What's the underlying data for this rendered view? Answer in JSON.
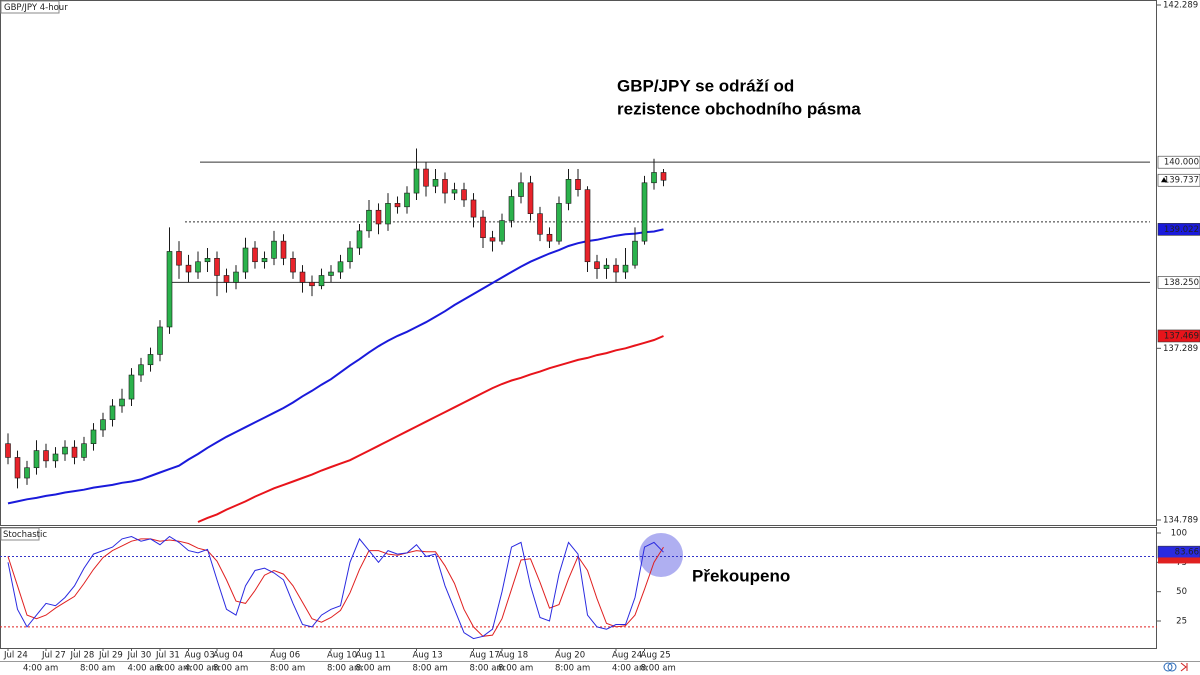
{
  "chart_data": [
    {
      "type": "candlestick",
      "title": "GBP/JPY 4-hour",
      "annotation": [
        "GBP/JPY se odráží od",
        "rezistence obchodního pásma"
      ],
      "up_color": "#2bb24c",
      "down_color": "#e8232b",
      "ylim": [
        134.716,
        142.362
      ],
      "yticks": [
        142.289,
        137.289,
        134.789
      ],
      "levels": [
        {
          "value": 140,
          "label": "140.000",
          "style": "solid"
        },
        {
          "value": 139.13,
          "style": "dotted"
        },
        {
          "value": 138.25,
          "label": "138.250",
          "style": "solid"
        }
      ],
      "ohlc": [
        [
          135.9,
          136.05,
          135.6,
          135.7
        ],
        [
          135.7,
          135.8,
          135.25,
          135.4
        ],
        [
          135.4,
          135.65,
          135.3,
          135.55
        ],
        [
          135.55,
          135.95,
          135.45,
          135.8
        ],
        [
          135.8,
          135.9,
          135.55,
          135.65
        ],
        [
          135.65,
          135.85,
          135.55,
          135.75
        ],
        [
          135.75,
          135.95,
          135.65,
          135.85
        ],
        [
          135.85,
          135.95,
          135.6,
          135.7
        ],
        [
          135.7,
          136.0,
          135.65,
          135.9
        ],
        [
          135.9,
          136.2,
          135.8,
          136.1
        ],
        [
          136.1,
          136.35,
          136.0,
          136.25
        ],
        [
          136.25,
          136.55,
          136.15,
          136.45
        ],
        [
          136.45,
          136.7,
          136.35,
          136.55
        ],
        [
          136.55,
          137.0,
          136.45,
          136.9
        ],
        [
          136.9,
          137.15,
          136.8,
          137.05
        ],
        [
          137.05,
          137.3,
          136.95,
          137.2
        ],
        [
          137.2,
          137.7,
          137.1,
          137.6
        ],
        [
          137.6,
          139.05,
          137.5,
          138.7
        ],
        [
          138.7,
          138.85,
          138.3,
          138.5
        ],
        [
          138.5,
          138.65,
          138.25,
          138.4
        ],
        [
          138.4,
          138.7,
          138.3,
          138.55
        ],
        [
          138.55,
          138.75,
          138.4,
          138.6
        ],
        [
          138.6,
          138.7,
          138.05,
          138.35
        ],
        [
          138.35,
          138.45,
          138.1,
          138.25
        ],
        [
          138.25,
          138.5,
          138.15,
          138.4
        ],
        [
          138.4,
          138.9,
          138.3,
          138.75
        ],
        [
          138.75,
          138.85,
          138.45,
          138.55
        ],
        [
          138.55,
          138.7,
          138.45,
          138.6
        ],
        [
          138.6,
          139.0,
          138.5,
          138.85
        ],
        [
          138.85,
          138.95,
          138.5,
          138.6
        ],
        [
          138.6,
          138.7,
          138.3,
          138.4
        ],
        [
          138.4,
          138.5,
          138.1,
          138.25
        ],
        [
          138.25,
          138.35,
          138.05,
          138.2
        ],
        [
          138.2,
          138.45,
          138.15,
          138.35
        ],
        [
          138.35,
          138.5,
          138.25,
          138.4
        ],
        [
          138.4,
          138.65,
          138.3,
          138.55
        ],
        [
          138.55,
          138.85,
          138.45,
          138.75
        ],
        [
          138.75,
          139.1,
          138.65,
          139.0
        ],
        [
          139.0,
          139.45,
          138.9,
          139.3
        ],
        [
          139.3,
          139.4,
          138.95,
          139.1
        ],
        [
          139.1,
          139.55,
          139.0,
          139.4
        ],
        [
          139.4,
          139.5,
          139.25,
          139.35
        ],
        [
          139.35,
          139.65,
          139.25,
          139.55
        ],
        [
          139.55,
          140.2,
          139.45,
          139.9
        ],
        [
          139.9,
          140.0,
          139.5,
          139.65
        ],
        [
          139.65,
          139.9,
          139.55,
          139.75
        ],
        [
          139.75,
          139.85,
          139.4,
          139.55
        ],
        [
          139.55,
          139.7,
          139.45,
          139.6
        ],
        [
          139.6,
          139.7,
          139.35,
          139.45
        ],
        [
          139.45,
          139.55,
          139.05,
          139.2
        ],
        [
          139.2,
          139.3,
          138.75,
          138.9
        ],
        [
          138.9,
          139.0,
          138.7,
          138.85
        ],
        [
          138.85,
          139.25,
          138.8,
          139.15
        ],
        [
          139.15,
          139.6,
          139.05,
          139.5
        ],
        [
          139.5,
          139.85,
          139.4,
          139.7
        ],
        [
          139.7,
          139.8,
          139.15,
          139.25
        ],
        [
          139.25,
          139.35,
          138.85,
          138.95
        ],
        [
          138.95,
          139.05,
          138.75,
          138.85
        ],
        [
          138.85,
          139.5,
          138.8,
          139.4
        ],
        [
          139.4,
          139.9,
          139.3,
          139.75
        ],
        [
          139.75,
          139.9,
          139.5,
          139.6
        ],
        [
          139.6,
          139.65,
          138.4,
          138.55
        ],
        [
          138.55,
          138.65,
          138.3,
          138.45
        ],
        [
          138.45,
          138.6,
          138.3,
          138.5
        ],
        [
          138.5,
          138.6,
          138.25,
          138.4
        ],
        [
          138.4,
          138.75,
          138.3,
          138.5
        ],
        [
          138.5,
          139.05,
          138.45,
          138.85
        ],
        [
          138.85,
          139.8,
          138.8,
          139.7
        ],
        [
          139.7,
          140.05,
          139.6,
          139.85
        ],
        [
          139.85,
          139.9,
          139.65,
          139.737
        ]
      ],
      "series": [
        {
          "color": "#1a1adb",
          "values": [
            135.03,
            135.06,
            135.09,
            135.11,
            135.14,
            135.16,
            135.19,
            135.21,
            135.23,
            135.26,
            135.28,
            135.3,
            135.33,
            135.35,
            135.38,
            135.43,
            135.48,
            135.53,
            135.58,
            135.67,
            135.75,
            135.84,
            135.92,
            136.0,
            136.07,
            136.14,
            136.21,
            136.28,
            136.35,
            136.42,
            136.5,
            136.59,
            136.67,
            136.76,
            136.84,
            136.94,
            137.04,
            137.13,
            137.23,
            137.32,
            137.4,
            137.47,
            137.53,
            137.6,
            137.67,
            137.75,
            137.83,
            137.92,
            138.0,
            138.08,
            138.16,
            138.24,
            138.32,
            138.4,
            138.48,
            138.55,
            138.61,
            138.67,
            138.72,
            138.78,
            138.82,
            138.85,
            138.87,
            138.9,
            138.93,
            138.95,
            138.96,
            138.98,
            138.99,
            139.022
          ]
        },
        {
          "color": "#e8141b",
          "values": [
            null,
            null,
            null,
            null,
            null,
            null,
            null,
            null,
            null,
            null,
            null,
            null,
            null,
            null,
            null,
            null,
            null,
            null,
            null,
            null,
            134.76,
            134.82,
            134.87,
            134.94,
            135.0,
            135.06,
            135.13,
            135.19,
            135.25,
            135.3,
            135.35,
            135.4,
            135.45,
            135.51,
            135.56,
            135.61,
            135.66,
            135.73,
            135.8,
            135.87,
            135.94,
            136.01,
            136.08,
            136.15,
            136.22,
            136.29,
            136.36,
            136.43,
            136.5,
            136.57,
            136.64,
            136.71,
            136.77,
            136.82,
            136.86,
            136.91,
            136.95,
            137.0,
            137.04,
            137.08,
            137.12,
            137.15,
            137.19,
            137.22,
            137.26,
            137.29,
            137.33,
            137.37,
            137.41,
            137.469
          ]
        }
      ]
    },
    {
      "type": "line",
      "title": "Stochastic",
      "annotation": "Překoupeno",
      "ylim": [
        2.0,
        105.1
      ],
      "yticks": [
        100,
        75,
        50,
        25
      ],
      "levels": [
        {
          "value": 80,
          "color": "#3434c8"
        },
        {
          "value": 20,
          "color": "#e02020"
        }
      ],
      "series": [
        {
          "color": "#2a2ae0",
          "values": [
            75,
            35,
            20,
            30,
            40,
            38,
            45,
            55,
            70,
            82,
            85,
            88,
            95,
            97,
            93,
            95,
            90,
            97,
            92,
            85,
            83,
            86,
            60,
            35,
            30,
            55,
            68,
            70,
            66,
            60,
            40,
            22,
            20,
            30,
            35,
            38,
            75,
            95,
            85,
            75,
            85,
            82,
            83,
            90,
            80,
            82,
            55,
            35,
            15,
            10,
            12,
            18,
            50,
            88,
            92,
            55,
            28,
            25,
            65,
            92,
            82,
            30,
            20,
            18,
            22,
            22,
            45,
            88,
            92,
            83.66
          ]
        },
        {
          "color": "#e02020",
          "values": [
            80,
            55,
            30,
            27,
            30,
            36,
            41,
            46,
            57,
            69,
            79,
            85,
            89,
            93,
            95,
            95,
            93,
            94,
            93,
            91,
            87,
            85,
            76,
            60,
            42,
            40,
            51,
            64,
            68,
            65,
            55,
            41,
            27,
            24,
            28,
            34,
            49,
            69,
            85,
            85,
            82,
            81,
            83,
            85,
            84,
            84,
            72,
            57,
            35,
            20,
            12,
            13,
            27,
            52,
            77,
            78,
            58,
            36,
            39,
            61,
            80,
            68,
            44,
            23,
            20,
            21,
            30,
            52,
            75,
            88
          ]
        }
      ],
      "xticks": [
        {
          "value": 0,
          "label": "Jul 24"
        },
        {
          "value": 4,
          "label": "Jul 27"
        },
        {
          "value": 7,
          "label": "Jul 28"
        },
        {
          "value": 10,
          "label": "Jul 29"
        },
        {
          "value": 13,
          "label": "Jul 30"
        },
        {
          "value": 16,
          "label": "Jul 31"
        },
        {
          "value": 19,
          "label": "Aug 03"
        },
        {
          "value": 22,
          "label": "Aug 04"
        },
        {
          "value": 28,
          "label": "Aug 06"
        },
        {
          "value": 34,
          "label": "Aug 10"
        },
        {
          "value": 37,
          "label": "Aug 11"
        },
        {
          "value": 43,
          "label": "Aug 13"
        },
        {
          "value": 49,
          "label": "Aug 17"
        },
        {
          "value": 52,
          "label": "Aug 18"
        },
        {
          "value": 58,
          "label": "Aug 20"
        },
        {
          "value": 64,
          "label": "Aug 24"
        },
        {
          "value": 67,
          "label": "Aug 25"
        }
      ],
      "xticks2": [
        {
          "value": 2,
          "label": "4:00 am"
        },
        {
          "value": 8,
          "label": "8:00 am"
        },
        {
          "value": 13,
          "label": "4:00 am"
        },
        {
          "value": 16,
          "label": "8:00 am"
        },
        {
          "value": 19,
          "label": "4:00 am"
        },
        {
          "value": 22,
          "label": "8:00 am"
        },
        {
          "value": 28,
          "label": "8:00 am"
        },
        {
          "value": 34,
          "label": "8:00 am"
        },
        {
          "value": 37,
          "label": "8:00 am"
        },
        {
          "value": 43,
          "label": "8:00 am"
        },
        {
          "value": 49,
          "label": "8:00 am"
        },
        {
          "value": 52,
          "label": "8:00 am"
        },
        {
          "value": 58,
          "label": "8:00 am"
        },
        {
          "value": 64,
          "label": "4:00 am"
        },
        {
          "value": 67,
          "label": "8:00 am"
        }
      ]
    }
  ]
}
